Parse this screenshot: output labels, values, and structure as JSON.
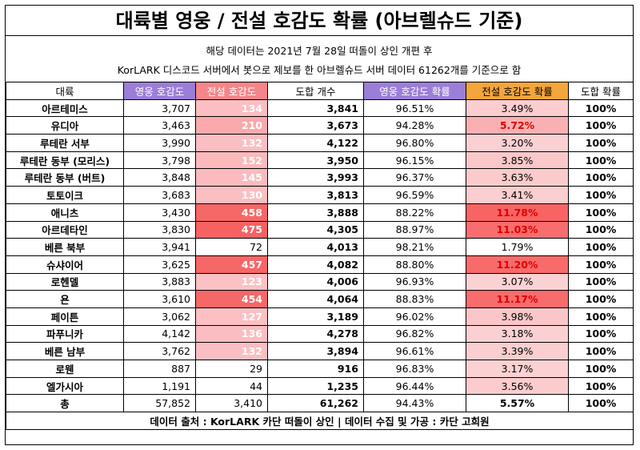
{
  "title": "대륙별 영웅 / 전설 호감도 확률 (아브렐슈드 기준)",
  "subtitle1": "해당 데이터는 2021년 7월 28일 떠돌이 상인 개편 후",
  "subtitle2": "KorLARK 디스코드 서버에서 봇으로 제보를 한 아브렐슈드 서버 데이터 61262개를 기준으로 함",
  "headers": [
    "대륙",
    "영웅 호감도",
    "전설 호감도",
    "도합 개수",
    "영웅 호감도 확률",
    "전설 호감도 확률",
    "도합 확률"
  ],
  "header_colors": {
    "hero": "#9b7ed8",
    "legend": "#f4868a",
    "legend_rate": "#f4a63a"
  },
  "rows": [
    {
      "name": "아르테미스",
      "hero": "3,707",
      "legend": "134",
      "legend_value": 134,
      "total": "3,841",
      "hero_rate": "96.51%",
      "legend_rate": "3.49%",
      "legend_rate_value": 3.49,
      "total_rate": "100%"
    },
    {
      "name": "유디아",
      "hero": "3,463",
      "legend": "210",
      "legend_value": 210,
      "total": "3,673",
      "hero_rate": "94.28%",
      "legend_rate": "5.72%",
      "legend_rate_value": 5.72,
      "total_rate": "100%"
    },
    {
      "name": "루테란 서부",
      "hero": "3,990",
      "legend": "132",
      "legend_value": 132,
      "total": "4,122",
      "hero_rate": "96.80%",
      "legend_rate": "3.20%",
      "legend_rate_value": 3.2,
      "total_rate": "100%"
    },
    {
      "name": "루테란 동부 (모리스)",
      "hero": "3,798",
      "legend": "152",
      "legend_value": 152,
      "total": "3,950",
      "hero_rate": "96.15%",
      "legend_rate": "3.85%",
      "legend_rate_value": 3.85,
      "total_rate": "100%"
    },
    {
      "name": "루테란 동부 (버트)",
      "hero": "3,848",
      "legend": "145",
      "legend_value": 145,
      "total": "3,993",
      "hero_rate": "96.37%",
      "legend_rate": "3.63%",
      "legend_rate_value": 3.63,
      "total_rate": "100%"
    },
    {
      "name": "토토이크",
      "hero": "3,683",
      "legend": "130",
      "legend_value": 130,
      "total": "3,813",
      "hero_rate": "96.59%",
      "legend_rate": "3.41%",
      "legend_rate_value": 3.41,
      "total_rate": "100%"
    },
    {
      "name": "애니츠",
      "hero": "3,430",
      "legend": "458",
      "legend_value": 458,
      "total": "3,888",
      "hero_rate": "88.22%",
      "legend_rate": "11.78%",
      "legend_rate_value": 11.78,
      "total_rate": "100%"
    },
    {
      "name": "아르데타인",
      "hero": "3,830",
      "legend": "475",
      "legend_value": 475,
      "total": "4,305",
      "hero_rate": "88.97%",
      "legend_rate": "11.03%",
      "legend_rate_value": 11.03,
      "total_rate": "100%"
    },
    {
      "name": "베른 북부",
      "hero": "3,941",
      "legend": "72",
      "legend_value": 72,
      "total": "4,013",
      "hero_rate": "98.21%",
      "legend_rate": "1.79%",
      "legend_rate_value": 1.79,
      "total_rate": "100%"
    },
    {
      "name": "슈샤이어",
      "hero": "3,625",
      "legend": "457",
      "legend_value": 457,
      "total": "4,082",
      "hero_rate": "88.80%",
      "legend_rate": "11.20%",
      "legend_rate_value": 11.2,
      "total_rate": "100%"
    },
    {
      "name": "로헨델",
      "hero": "3,883",
      "legend": "123",
      "legend_value": 123,
      "total": "4,006",
      "hero_rate": "96.93%",
      "legend_rate": "3.07%",
      "legend_rate_value": 3.07,
      "total_rate": "100%"
    },
    {
      "name": "욘",
      "hero": "3,610",
      "legend": "454",
      "legend_value": 454,
      "total": "4,064",
      "hero_rate": "88.83%",
      "legend_rate": "11.17%",
      "legend_rate_value": 11.17,
      "total_rate": "100%"
    },
    {
      "name": "페이튼",
      "hero": "3,062",
      "legend": "127",
      "legend_value": 127,
      "total": "3,189",
      "hero_rate": "96.02%",
      "legend_rate": "3.98%",
      "legend_rate_value": 3.98,
      "total_rate": "100%"
    },
    {
      "name": "파푸니카",
      "hero": "4,142",
      "legend": "136",
      "legend_value": 136,
      "total": "4,278",
      "hero_rate": "96.82%",
      "legend_rate": "3.18%",
      "legend_rate_value": 3.18,
      "total_rate": "100%"
    },
    {
      "name": "베른 남부",
      "hero": "3,762",
      "legend": "132",
      "legend_value": 132,
      "total": "3,894",
      "hero_rate": "96.61%",
      "legend_rate": "3.39%",
      "legend_rate_value": 3.39,
      "total_rate": "100%"
    },
    {
      "name": "로웬",
      "hero": "887",
      "legend": "29",
      "legend_value": 29,
      "total": "916",
      "hero_rate": "96.83%",
      "legend_rate": "3.17%",
      "legend_rate_value": 3.17,
      "total_rate": "100%"
    },
    {
      "name": "엘가시아",
      "hero": "1,191",
      "legend": "44",
      "legend_value": 44,
      "total": "1,235",
      "hero_rate": "96.44%",
      "legend_rate": "3.56%",
      "legend_rate_value": 3.56,
      "total_rate": "100%"
    }
  ],
  "total_row": {
    "name": "총",
    "hero": "57,852",
    "legend": "3,410",
    "total": "61,262",
    "hero_rate": "94.43%",
    "legend_rate": "5.57%",
    "total_rate": "100%"
  },
  "footer": "데이터 출처 : KorLARK 카단 떠돌이 상인   |   데이터 수집 및 가공 : 카단 고희원"
}
